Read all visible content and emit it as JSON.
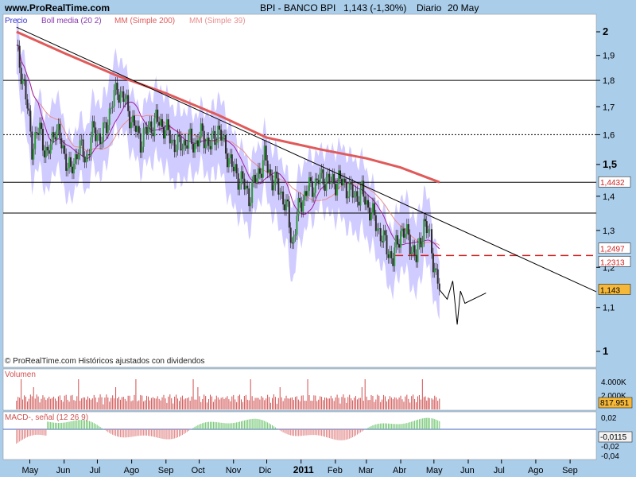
{
  "header": {
    "site": "www.ProRealTime.com",
    "title": "BPI - BANCO BPI",
    "quote": "1,143 (-1,30%)",
    "period": "Diario",
    "date": "20 May"
  },
  "legend": {
    "price": "Precio",
    "boll": "Boll media (20 2)",
    "mm200": "MM (Simple 200)",
    "mm39": "MM (Simple 39)"
  },
  "footer_note": "© ProRealTime.com Históricos ajustados con dividendos",
  "volume_panel": {
    "label": "Volumen",
    "tick_top": "4.000K",
    "tick_mid": "2.000K",
    "last": "817.951"
  },
  "macd_panel": {
    "label": "MACD-, señal (12 26 9)",
    "ticks": [
      "0,02",
      "-0,02",
      "-0,04"
    ],
    "last": "-0,0115"
  },
  "colors": {
    "background": "#aacdea",
    "plot": "#ffffff",
    "bollinger_fill": "#c9c3ff",
    "mm200": "#e05a5a",
    "mm39": "#e88f8f",
    "boll_mid": "#a020a0",
    "candle_up": "#2e9a3a",
    "candle_down": "#2b2b2b",
    "volume": "#d05050",
    "macd_hist_pos": "#6cc46c",
    "macd_hist_neg": "#e08080",
    "signal_line": "#4060c0"
  },
  "chart_data": {
    "type": "candlestick",
    "y_axis_ticks": [
      "2",
      "1,9",
      "1,8",
      "1,7",
      "1,6",
      "1,5",
      "1,4",
      "1,3",
      "1,2",
      "1,1",
      "1"
    ],
    "y_scale": "log",
    "ylim": [
      0.94,
      2.08
    ],
    "x_labels": [
      "May",
      "Jun",
      "Jul",
      "Ago",
      "Sep",
      "Oct",
      "Nov",
      "Dic",
      "2011",
      "Feb",
      "Mar",
      "Abr",
      "May",
      "Jun",
      "Jul",
      "Ago",
      "Sep"
    ],
    "price_series": [
      [
        "2010-05-03",
        1.92
      ],
      [
        "2010-05-10",
        1.78
      ],
      [
        "2010-05-17",
        1.56
      ],
      [
        "2010-05-24",
        1.62
      ],
      [
        "2010-05-31",
        1.52
      ],
      [
        "2010-06-07",
        1.63
      ],
      [
        "2010-06-14",
        1.55
      ],
      [
        "2010-06-21",
        1.47
      ],
      [
        "2010-06-28",
        1.56
      ],
      [
        "2010-07-05",
        1.52
      ],
      [
        "2010-07-12",
        1.62
      ],
      [
        "2010-07-19",
        1.58
      ],
      [
        "2010-07-26",
        1.68
      ],
      [
        "2010-08-02",
        1.77
      ],
      [
        "2010-08-09",
        1.72
      ],
      [
        "2010-08-16",
        1.64
      ],
      [
        "2010-08-23",
        1.58
      ],
      [
        "2010-08-30",
        1.62
      ],
      [
        "2010-09-06",
        1.65
      ],
      [
        "2010-09-13",
        1.63
      ],
      [
        "2010-09-20",
        1.58
      ],
      [
        "2010-09-27",
        1.56
      ],
      [
        "2010-10-04",
        1.58
      ],
      [
        "2010-10-11",
        1.57
      ],
      [
        "2010-10-18",
        1.6
      ],
      [
        "2010-10-25",
        1.56
      ],
      [
        "2010-11-01",
        1.62
      ],
      [
        "2010-11-08",
        1.55
      ],
      [
        "2010-11-15",
        1.48
      ],
      [
        "2010-11-22",
        1.45
      ],
      [
        "2010-11-29",
        1.4
      ],
      [
        "2010-12-06",
        1.46
      ],
      [
        "2010-12-13",
        1.52
      ],
      [
        "2010-12-20",
        1.45
      ],
      [
        "2010-12-27",
        1.42
      ],
      [
        "2011-01-03",
        1.35
      ],
      [
        "2011-01-07",
        1.26
      ],
      [
        "2011-01-14",
        1.38
      ],
      [
        "2011-01-21",
        1.42
      ],
      [
        "2011-01-28",
        1.44
      ],
      [
        "2011-02-04",
        1.46
      ],
      [
        "2011-02-11",
        1.44
      ],
      [
        "2011-02-18",
        1.45
      ],
      [
        "2011-02-25",
        1.43
      ],
      [
        "2011-03-04",
        1.4
      ],
      [
        "2011-03-11",
        1.41
      ],
      [
        "2011-03-18",
        1.36
      ],
      [
        "2011-03-25",
        1.31
      ],
      [
        "2011-04-01",
        1.26
      ],
      [
        "2011-04-08",
        1.22
      ],
      [
        "2011-04-15",
        1.3
      ],
      [
        "2011-04-22",
        1.28
      ],
      [
        "2011-04-29",
        1.22
      ],
      [
        "2011-05-06",
        1.32
      ],
      [
        "2011-05-11",
        1.28
      ],
      [
        "2011-05-13",
        1.25
      ],
      [
        "2011-05-17",
        1.17
      ],
      [
        "2011-05-20",
        1.143
      ]
    ],
    "ma200": [
      [
        "2010-05-03",
        2.0
      ],
      [
        "2010-06-15",
        1.91
      ],
      [
        "2010-08-01",
        1.82
      ],
      [
        "2010-09-15",
        1.75
      ],
      [
        "2010-11-01",
        1.67
      ],
      [
        "2010-12-15",
        1.59
      ],
      [
        "2011-02-01",
        1.55
      ],
      [
        "2011-03-15",
        1.52
      ],
      [
        "2011-04-15",
        1.49
      ],
      [
        "2011-05-20",
        1.4432
      ]
    ],
    "trendline": [
      [
        "2010-05-03",
        2.02
      ],
      [
        "2011-09-30",
        1.15
      ]
    ],
    "horizontal_lines": [
      1.8,
      1.6,
      1.4432,
      1.35
    ],
    "dashed_level": 1.2313,
    "projection": [
      [
        "2011-05-20",
        1.143
      ],
      [
        "2011-05-27",
        1.12
      ],
      [
        "2011-06-01",
        1.165
      ],
      [
        "2011-06-05",
        1.06
      ],
      [
        "2011-06-08",
        1.14
      ],
      [
        "2011-06-12",
        1.11
      ],
      [
        "2011-07-01",
        1.135
      ]
    ],
    "value_labels": {
      "ma200": "1,4432",
      "ma39": "1,2497",
      "level": "1,2313",
      "last": "1,143"
    },
    "volume_spikes_k": [
      4200,
      1800,
      1500,
      4600,
      2100,
      1700,
      2400,
      1500
    ]
  }
}
